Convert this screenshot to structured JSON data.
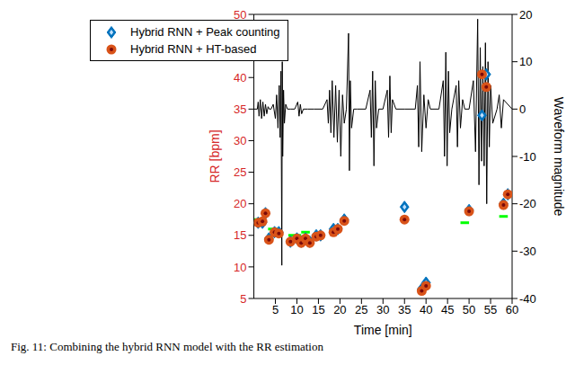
{
  "chart_data": {
    "type": "scatter",
    "caption": "Fig. 11: Combining the hybrid RNN model with the RR estimation",
    "x_label": "Time [min]",
    "y_label": "RR [bpm]",
    "y2_label": "Waveform magnitude",
    "xlim": [
      0,
      60
    ],
    "xticks": [
      5,
      10,
      15,
      20,
      25,
      30,
      35,
      40,
      45,
      50,
      55,
      60
    ],
    "ylim": [
      5,
      50
    ],
    "yticks": [
      5,
      10,
      15,
      20,
      25,
      30,
      35,
      40,
      45,
      50
    ],
    "y2lim": [
      -40,
      20
    ],
    "y2ticks": [
      -40,
      -30,
      -20,
      -10,
      0,
      10,
      20
    ],
    "grid": false,
    "legend": "upper left",
    "series": [
      {
        "name": "Hybrid RNN + Peak counting",
        "type": "scatter",
        "marker": "diamond",
        "color": "#0072bd",
        "x": [
          1,
          2,
          2.7,
          3.5,
          4.8,
          5.8,
          8.5,
          10,
          11,
          12,
          13,
          14.5,
          15.5,
          18.5,
          19.5,
          21,
          35,
          39,
          40,
          50,
          53,
          54,
          58,
          59
        ],
        "values": [
          17,
          17,
          18.5,
          14.5,
          15.5,
          15.5,
          14,
          14.5,
          14,
          14.5,
          14,
          15,
          15,
          16,
          16,
          17.5,
          19.5,
          6.5,
          7.5,
          19,
          34,
          40.5,
          20,
          21.5
        ]
      },
      {
        "name": "Hybrid RNN + HT-based",
        "type": "scatter",
        "marker": "circle",
        "color": "#d95319",
        "x": [
          1,
          2,
          2.7,
          3.5,
          4.8,
          5.8,
          8.5,
          10,
          11,
          12,
          13,
          14.5,
          15.5,
          18.5,
          19.5,
          21,
          35,
          39,
          40,
          50,
          53,
          54,
          58,
          59
        ],
        "values": [
          17,
          17.2,
          18.5,
          14.3,
          15.5,
          15.3,
          14,
          14.5,
          13.8,
          14.5,
          13.8,
          14.8,
          15,
          15.5,
          16,
          17.3,
          17.5,
          6.2,
          7,
          18.8,
          40.5,
          38.5,
          19.8,
          21.5
        ]
      },
      {
        "type": "line",
        "axis": "y2",
        "color": "#000000",
        "x": [
          0,
          0.8,
          1.0,
          1.2,
          1.5,
          1.8,
          2.1,
          2.4,
          2.7,
          3.0,
          3.3,
          3.6,
          4.0,
          4.5,
          5.0,
          5.3,
          5.6,
          5.9,
          6.1,
          6.3,
          6.5,
          6.6,
          6.7,
          6.9,
          7.1,
          7.4,
          7.8,
          8.5,
          9.5,
          10.2,
          10.5,
          10.8,
          11.1,
          11.5,
          12.5,
          14,
          16,
          17.0,
          17.3,
          17.6,
          17.9,
          18.2,
          18.6,
          19.0,
          19.4,
          19.8,
          20.2,
          20.6,
          21.0,
          21.5,
          22.0,
          22.2,
          22.4,
          22.7,
          23.2,
          24,
          26,
          27.0,
          27.3,
          27.6,
          27.9,
          28.2,
          28.5,
          29,
          30,
          31.0,
          31.3,
          31.6,
          31.9,
          32.2,
          33,
          35,
          37.5,
          38.0,
          38.3,
          38.6,
          39.0,
          39.5,
          40.0,
          40.5,
          41,
          43,
          44.0,
          44.3,
          44.6,
          44.9,
          45.2,
          45.5,
          46,
          47.0,
          47.3,
          47.6,
          48.0,
          48.5,
          49,
          50,
          51.0,
          51.5,
          52.0,
          52.3,
          52.6,
          52.9,
          53.2,
          53.5,
          53.8,
          54.1,
          54.4,
          54.7,
          55.0,
          55.5,
          56.5,
          57,
          57.5,
          58,
          60
        ],
        "values": [
          0,
          0,
          1.5,
          -1.5,
          2,
          -2,
          1.5,
          -1.5,
          1,
          -1,
          0.5,
          0,
          0,
          1,
          -2,
          3,
          -4,
          5,
          -6,
          8,
          -33,
          10,
          -10,
          4,
          -3,
          1,
          0,
          0,
          0,
          1.5,
          -1.5,
          1,
          -1,
          0,
          0,
          0,
          0,
          2,
          -3,
          4,
          -5,
          6,
          -6,
          5,
          -7,
          4,
          -10,
          3,
          -3,
          0,
          16,
          -13,
          6,
          -4,
          0,
          0,
          0,
          4,
          -6,
          8,
          -12,
          6,
          -4,
          0,
          0,
          4,
          -6,
          7,
          -5,
          2,
          0,
          0,
          0,
          5,
          -8,
          10,
          -9,
          3,
          -4,
          2,
          0,
          0,
          6,
          -10,
          12,
          -12,
          8,
          -5,
          0,
          5,
          -8,
          6,
          -4,
          2,
          0,
          0,
          6,
          -9,
          19,
          -16,
          13,
          -11,
          9,
          -12,
          14,
          -20,
          10,
          -8,
          5,
          -3,
          0,
          3,
          -4,
          2,
          0
        ]
      }
    ],
    "reference": {
      "color": "#00ff00",
      "segments": [
        {
          "x": [
            0,
            2
          ],
          "value": 17.5
        },
        {
          "x": [
            3.3,
            5.5
          ],
          "value": 16
        },
        {
          "x": [
            8,
            11
          ],
          "value": 15
        },
        {
          "x": [
            11,
            13
          ],
          "value": 15.5
        },
        {
          "x": [
            14,
            16
          ],
          "value": 14.5
        },
        {
          "x": [
            18,
            20
          ],
          "value": 16
        },
        {
          "x": [
            48,
            50
          ],
          "value": 17
        },
        {
          "x": [
            57,
            59
          ],
          "value": 18
        }
      ]
    }
  }
}
